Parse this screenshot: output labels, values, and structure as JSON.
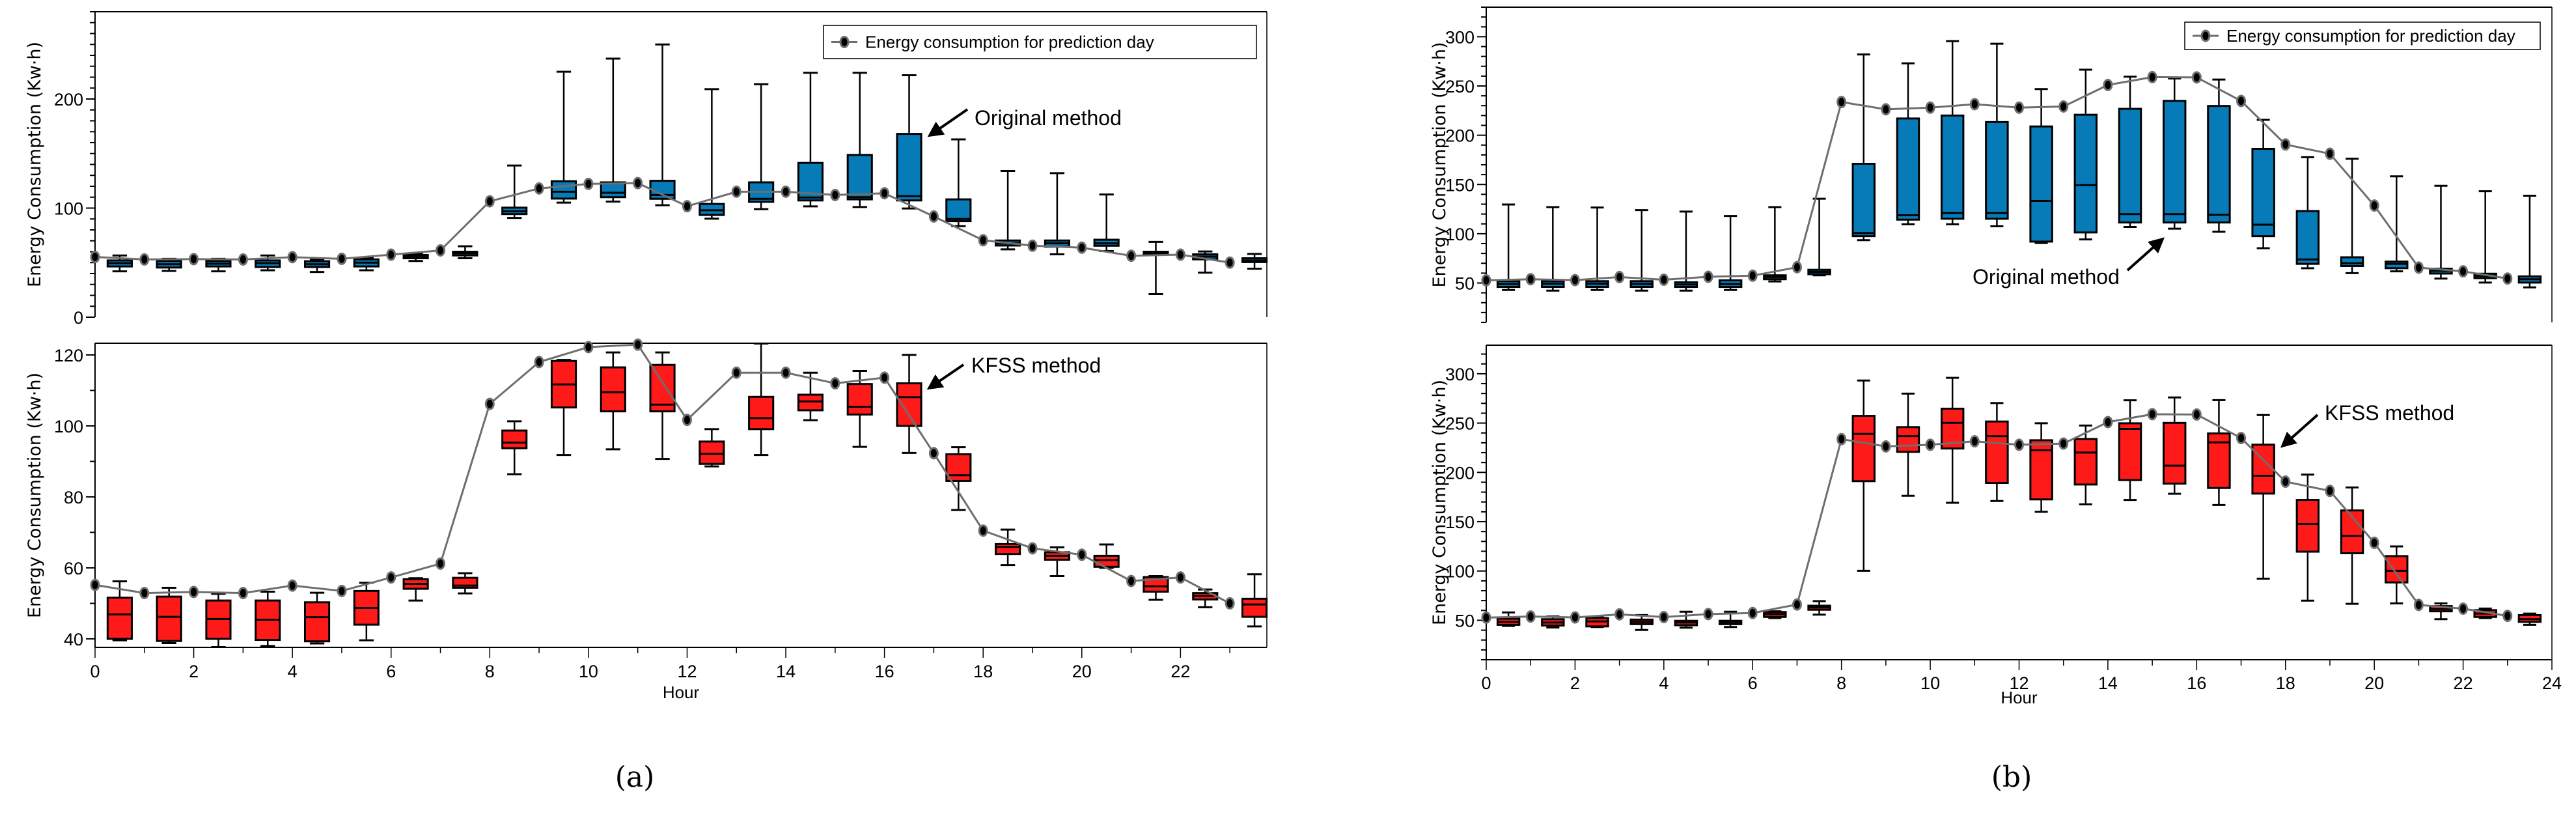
{
  "colors": {
    "original": "#067bb8",
    "kfss": "#ff1a1a",
    "line": "#6e6e6e",
    "marker": "#000000",
    "axis": "#000000"
  },
  "captions": [
    "(a)",
    "(b)"
  ],
  "chart_data": [
    {
      "id": "a-top",
      "type": "box+line",
      "method": "original",
      "ylabel": "Energy Consumption  (Kw·h)",
      "xlabel": "",
      "xlim": [
        0,
        23.75
      ],
      "ylim": [
        0,
        280
      ],
      "yticks": [
        0,
        100,
        200
      ],
      "yminor_step": 10,
      "legend": "Energy consumption for prediction day",
      "legend_position": "top-right",
      "annotation": "Original method",
      "line": [
        55.2,
        52.9,
        53.2,
        52.9,
        55,
        53.5,
        57.3,
        61.2,
        106.2,
        118,
        122.2,
        122.9,
        101.7,
        115,
        115,
        112,
        113.6,
        92.3,
        70.5,
        65.5,
        63.7,
        56.3,
        57.3,
        50
      ],
      "boxes": [
        [
          42,
          46.5,
          49.5,
          52,
          56.6
        ],
        [
          42.4,
          45.5,
          48.5,
          51.5,
          53.5
        ],
        [
          42,
          46.5,
          49,
          51.5,
          53.5
        ],
        [
          43,
          46,
          49.5,
          52,
          56.6
        ],
        [
          41.4,
          46,
          48.5,
          51.3,
          53
        ],
        [
          43,
          46.5,
          50,
          53,
          54.5
        ],
        [
          51.5,
          54,
          55.5,
          57,
          58
        ],
        [
          54,
          56.6,
          58.6,
          60,
          65
        ],
        [
          91,
          94.5,
          97,
          100.4,
          139
        ],
        [
          105,
          108.7,
          115,
          124.6,
          225
        ],
        [
          106,
          110,
          114,
          123.6,
          237
        ],
        [
          102.6,
          108.5,
          112,
          125,
          250
        ],
        [
          90.3,
          93.7,
          98,
          103.8,
          209
        ],
        [
          99,
          105.7,
          108.5,
          123.6,
          213.5
        ],
        [
          101.6,
          107,
          109.7,
          141.4,
          224
        ],
        [
          101,
          108,
          110,
          148.7,
          224
        ],
        [
          99.6,
          107,
          111,
          168,
          221.8
        ],
        [
          83.4,
          88,
          90,
          108,
          163
        ],
        [
          62.2,
          65.7,
          67.7,
          70.3,
          134
        ],
        [
          57.6,
          64.6,
          67.7,
          70.3,
          132
        ],
        [
          60.6,
          65.5,
          67.7,
          71,
          112.5
        ],
        [
          21.2,
          57,
          58.6,
          60,
          69
        ],
        [
          40.8,
          53,
          55.5,
          57.6,
          60.2
        ],
        [
          44.4,
          50.5,
          52,
          54,
          58
        ]
      ]
    },
    {
      "id": "a-bottom",
      "type": "box+line",
      "method": "kfss",
      "ylabel": "Energy Consumption  (Kw·h)",
      "xlabel": "Hour",
      "xlim": [
        0,
        23.75
      ],
      "ylim": [
        37.6,
        123.3
      ],
      "yticks": [
        40,
        60,
        80,
        100,
        120
      ],
      "yminor_step": 10,
      "xticks": [
        0,
        2,
        4,
        6,
        8,
        10,
        12,
        14,
        16,
        18,
        20,
        22
      ],
      "annotation": "KFSS method",
      "line": [
        55.2,
        52.9,
        53.2,
        52.9,
        55,
        53.5,
        57.3,
        61.2,
        106.2,
        118,
        122.2,
        122.9,
        101.7,
        115,
        115,
        112,
        113.6,
        92.3,
        70.5,
        65.5,
        63.7,
        56.3,
        57.3,
        50
      ],
      "boxes": [
        [
          39.6,
          40,
          46.9,
          51.6,
          56.2
        ],
        [
          38.8,
          39.4,
          46.2,
          51.9,
          54.4
        ],
        [
          37.7,
          40,
          45.6,
          50.8,
          52.7
        ],
        [
          38,
          39.7,
          45.4,
          50.8,
          53.3
        ],
        [
          38.7,
          39.3,
          46.1,
          50.3,
          53
        ],
        [
          39.6,
          44,
          48.7,
          53.5,
          55.8
        ],
        [
          50.8,
          54.1,
          55.5,
          56.8,
          57.1
        ],
        [
          52.8,
          54.4,
          55,
          57.2,
          58.5
        ],
        [
          86.4,
          93.7,
          95.3,
          98.7,
          101.3
        ],
        [
          91.8,
          105.2,
          111.7,
          118.3,
          118.6
        ],
        [
          93.4,
          104.1,
          109.5,
          116.5,
          120.7
        ],
        [
          90.7,
          104.1,
          106,
          117.2,
          120.7
        ],
        [
          88.6,
          89.3,
          92.1,
          95.6,
          99.1
        ],
        [
          91.8,
          99.1,
          102.2,
          108.2,
          123.2
        ],
        [
          101.6,
          104.4,
          106.9,
          108.8,
          115
        ],
        [
          94.1,
          103.2,
          105.4,
          111.8,
          115.5
        ],
        [
          92.4,
          100,
          108.1,
          112,
          120
        ],
        [
          76.3,
          84.5,
          86.1,
          92,
          94
        ],
        [
          60.8,
          63.9,
          65.9,
          66.7,
          70.8
        ],
        [
          57.7,
          62.3,
          63.4,
          64.4,
          65.8
        ],
        [
          60,
          60.3,
          62.2,
          63.4,
          66.6
        ],
        [
          51,
          53.3,
          54.8,
          57.4,
          57.7
        ],
        [
          48.9,
          51.1,
          52.1,
          52.9,
          53.9
        ],
        [
          43.5,
          46.2,
          49.7,
          51.3,
          58.2
        ]
      ]
    },
    {
      "id": "b-top",
      "type": "box+line",
      "method": "original",
      "ylabel": "Energy Consumption   (Kw·h)",
      "xlabel": "",
      "xlim": [
        0,
        24
      ],
      "ylim": [
        10,
        330
      ],
      "yticks": [
        50,
        100,
        150,
        200,
        250,
        300
      ],
      "yminor_step": 10,
      "legend": "Energy consumption for prediction day",
      "legend_position": "top-right",
      "annotation": "Original method",
      "line": [
        52.7,
        53.8,
        52.9,
        56,
        53.3,
        56.3,
        57.4,
        66,
        233.7,
        226.3,
        228,
        231.5,
        228,
        229.2,
        251,
        259,
        258.7,
        234.8,
        190.6,
        181.2,
        128.6,
        65.6,
        61.8,
        54.5
      ],
      "boxes": [
        [
          42.9,
          46,
          48.9,
          51.8,
          129.7
        ],
        [
          42.2,
          46,
          49.3,
          51.8,
          127
        ],
        [
          42.9,
          46,
          49.3,
          51.8,
          126.6
        ],
        [
          42.2,
          46,
          48.9,
          51.8,
          124
        ],
        [
          42.2,
          46,
          48.4,
          50.7,
          122.5
        ],
        [
          42.9,
          46,
          48.9,
          52.7,
          118
        ],
        [
          51.6,
          53.8,
          56,
          57.8,
          127
        ],
        [
          57.8,
          58.9,
          61.2,
          63.4,
          135.5
        ],
        [
          93.5,
          97.5,
          100.7,
          171,
          282
        ],
        [
          109.6,
          114.3,
          118.8,
          217,
          273
        ],
        [
          109.6,
          115.2,
          121,
          220,
          295.5
        ],
        [
          107.6,
          115.2,
          121,
          213.4,
          292.9
        ],
        [
          90.6,
          92,
          133.3,
          208.9,
          246.9
        ],
        [
          94.2,
          101.3,
          149.3,
          220.8,
          266.5
        ],
        [
          106.9,
          111.4,
          119.9,
          226.8,
          259.4
        ],
        [
          105.1,
          111.4,
          119.9,
          234.8,
          257.6
        ],
        [
          102,
          111.4,
          119.2,
          229.7,
          256.5
        ],
        [
          85.3,
          97.5,
          109.2,
          186.2,
          215.6
        ],
        [
          65,
          69.4,
          73.9,
          123,
          177.7
        ],
        [
          60,
          67.2,
          70.1,
          76.1,
          176.1
        ],
        [
          61.8,
          65,
          69.4,
          71.7,
          158.3
        ],
        [
          54.5,
          59.6,
          62.3,
          64.5,
          148.7
        ],
        [
          50.4,
          54.9,
          57.1,
          59.4,
          143.1
        ],
        [
          45.5,
          50.4,
          53.8,
          56.7,
          138.6
        ]
      ]
    },
    {
      "id": "b-bottom",
      "type": "box+line",
      "method": "kfss",
      "ylabel": "Energy Consumption   (Kw·h)",
      "xlabel": "Hour",
      "xlim": [
        0,
        24
      ],
      "ylim": [
        10,
        329
      ],
      "yticks": [
        50,
        100,
        150,
        200,
        250,
        300
      ],
      "yminor_step": 10,
      "xticks": [
        0,
        2,
        4,
        6,
        8,
        10,
        12,
        14,
        16,
        18,
        20,
        22,
        24
      ],
      "annotation": "KFSS  method",
      "line": [
        52.7,
        53.8,
        52.9,
        56,
        53.3,
        56.3,
        57.4,
        66,
        233.7,
        226.3,
        228,
        231.5,
        228,
        229.2,
        251,
        259,
        258.7,
        234.8,
        190.6,
        181.2,
        128.6,
        65.6,
        61.8,
        54.5
      ],
      "boxes": [
        [
          44.3,
          45.4,
          48.4,
          51.6,
          58
        ],
        [
          42.7,
          44.7,
          47.7,
          51.1,
          53.9
        ],
        [
          43.2,
          43.8,
          48.9,
          52.3,
          53.4
        ],
        [
          40.2,
          46.1,
          48.4,
          50.7,
          55.3
        ],
        [
          42.5,
          45,
          47.7,
          49.5,
          58.7
        ],
        [
          43.2,
          46.1,
          48.2,
          49.5,
          58.7
        ],
        [
          52.3,
          53.4,
          56.2,
          58.4,
          59.1
        ],
        [
          55.7,
          60.7,
          63,
          64.8,
          69.4
        ],
        [
          100.2,
          191.1,
          239,
          257.3,
          293.2
        ],
        [
          176.3,
          220.8,
          236.8,
          245.9,
          279.9
        ],
        [
          169.2,
          224.2,
          250.2,
          264.6,
          295.9
        ],
        [
          171,
          189.3,
          236.8,
          251.6,
          270.3
        ],
        [
          160,
          172.6,
          222.4,
          232.6,
          249.8
        ],
        [
          167.6,
          187.7,
          220.1,
          233.8,
          247.5
        ],
        [
          172.1,
          192.2,
          244.1,
          249.8,
          273.1
        ],
        [
          178.3,
          188.6,
          206.8,
          250.2,
          276
        ],
        [
          166.9,
          184.2,
          230.4,
          239.5,
          273.3
        ],
        [
          92.2,
          178.5,
          196.6,
          228.1,
          258.2
        ],
        [
          69.9,
          119.6,
          147.7,
          172.1,
          197.7
        ],
        [
          66.7,
          118,
          135.6,
          161.4,
          184.7
        ],
        [
          67.1,
          88.4,
          100.2,
          115.1,
          124.9
        ],
        [
          51.1,
          59.1,
          61.4,
          64.4,
          67.1
        ],
        [
          52.3,
          53.4,
          56.8,
          60.3,
          61.9
        ],
        [
          45.4,
          48.4,
          51.1,
          55.3,
          56.8
        ]
      ]
    }
  ]
}
